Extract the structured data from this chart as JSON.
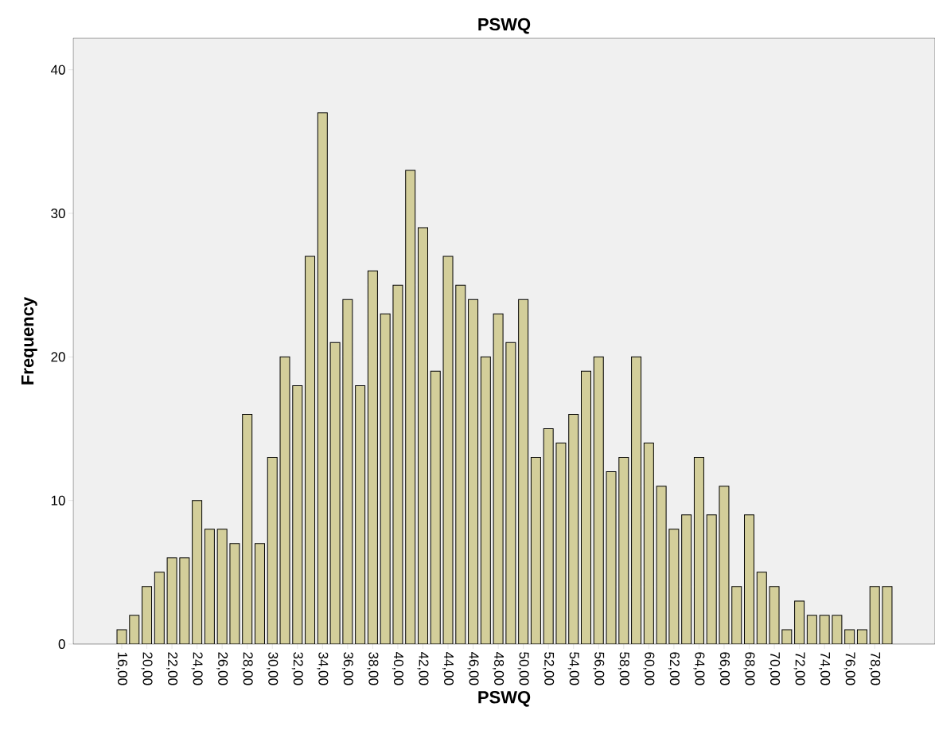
{
  "chart_data": {
    "type": "bar",
    "title": "PSWQ",
    "xlabel": "PSWQ",
    "ylabel": "Frequency",
    "color": "#d3ce9a",
    "categories": [
      "16,00",
      null,
      "20,00",
      null,
      "22,00",
      null,
      "24,00",
      null,
      "26,00",
      null,
      "28,00",
      null,
      "30,00",
      null,
      "32,00",
      null,
      "34,00",
      null,
      "36,00",
      null,
      "38,00",
      null,
      "40,00",
      null,
      "42,00",
      null,
      "44,00",
      null,
      "46,00",
      null,
      "48,00",
      null,
      "50,00",
      null,
      "52,00",
      null,
      "54,00",
      null,
      "56,00",
      null,
      "58,00",
      null,
      "60,00",
      null,
      "62,00",
      null,
      "64,00",
      null,
      "66,00",
      null,
      "68,00",
      null,
      "70,00",
      null,
      "72,00",
      null,
      "74,00",
      null,
      "76,00",
      null,
      "78,00",
      null
    ],
    "values": [
      1,
      2,
      4,
      5,
      6,
      6,
      10,
      8,
      8,
      7,
      16,
      7,
      13,
      20,
      18,
      27,
      37,
      21,
      24,
      18,
      26,
      23,
      25,
      33,
      29,
      19,
      27,
      25,
      24,
      20,
      23,
      21,
      24,
      13,
      15,
      14,
      16,
      19,
      20,
      12,
      13,
      20,
      14,
      11,
      8,
      9,
      13,
      9,
      11,
      4,
      9,
      5,
      4,
      1,
      3,
      2,
      2,
      2,
      1,
      1,
      4,
      4
    ],
    "ylim": [
      0,
      42.2
    ],
    "yticks": [
      0,
      10,
      20,
      30,
      40
    ]
  }
}
